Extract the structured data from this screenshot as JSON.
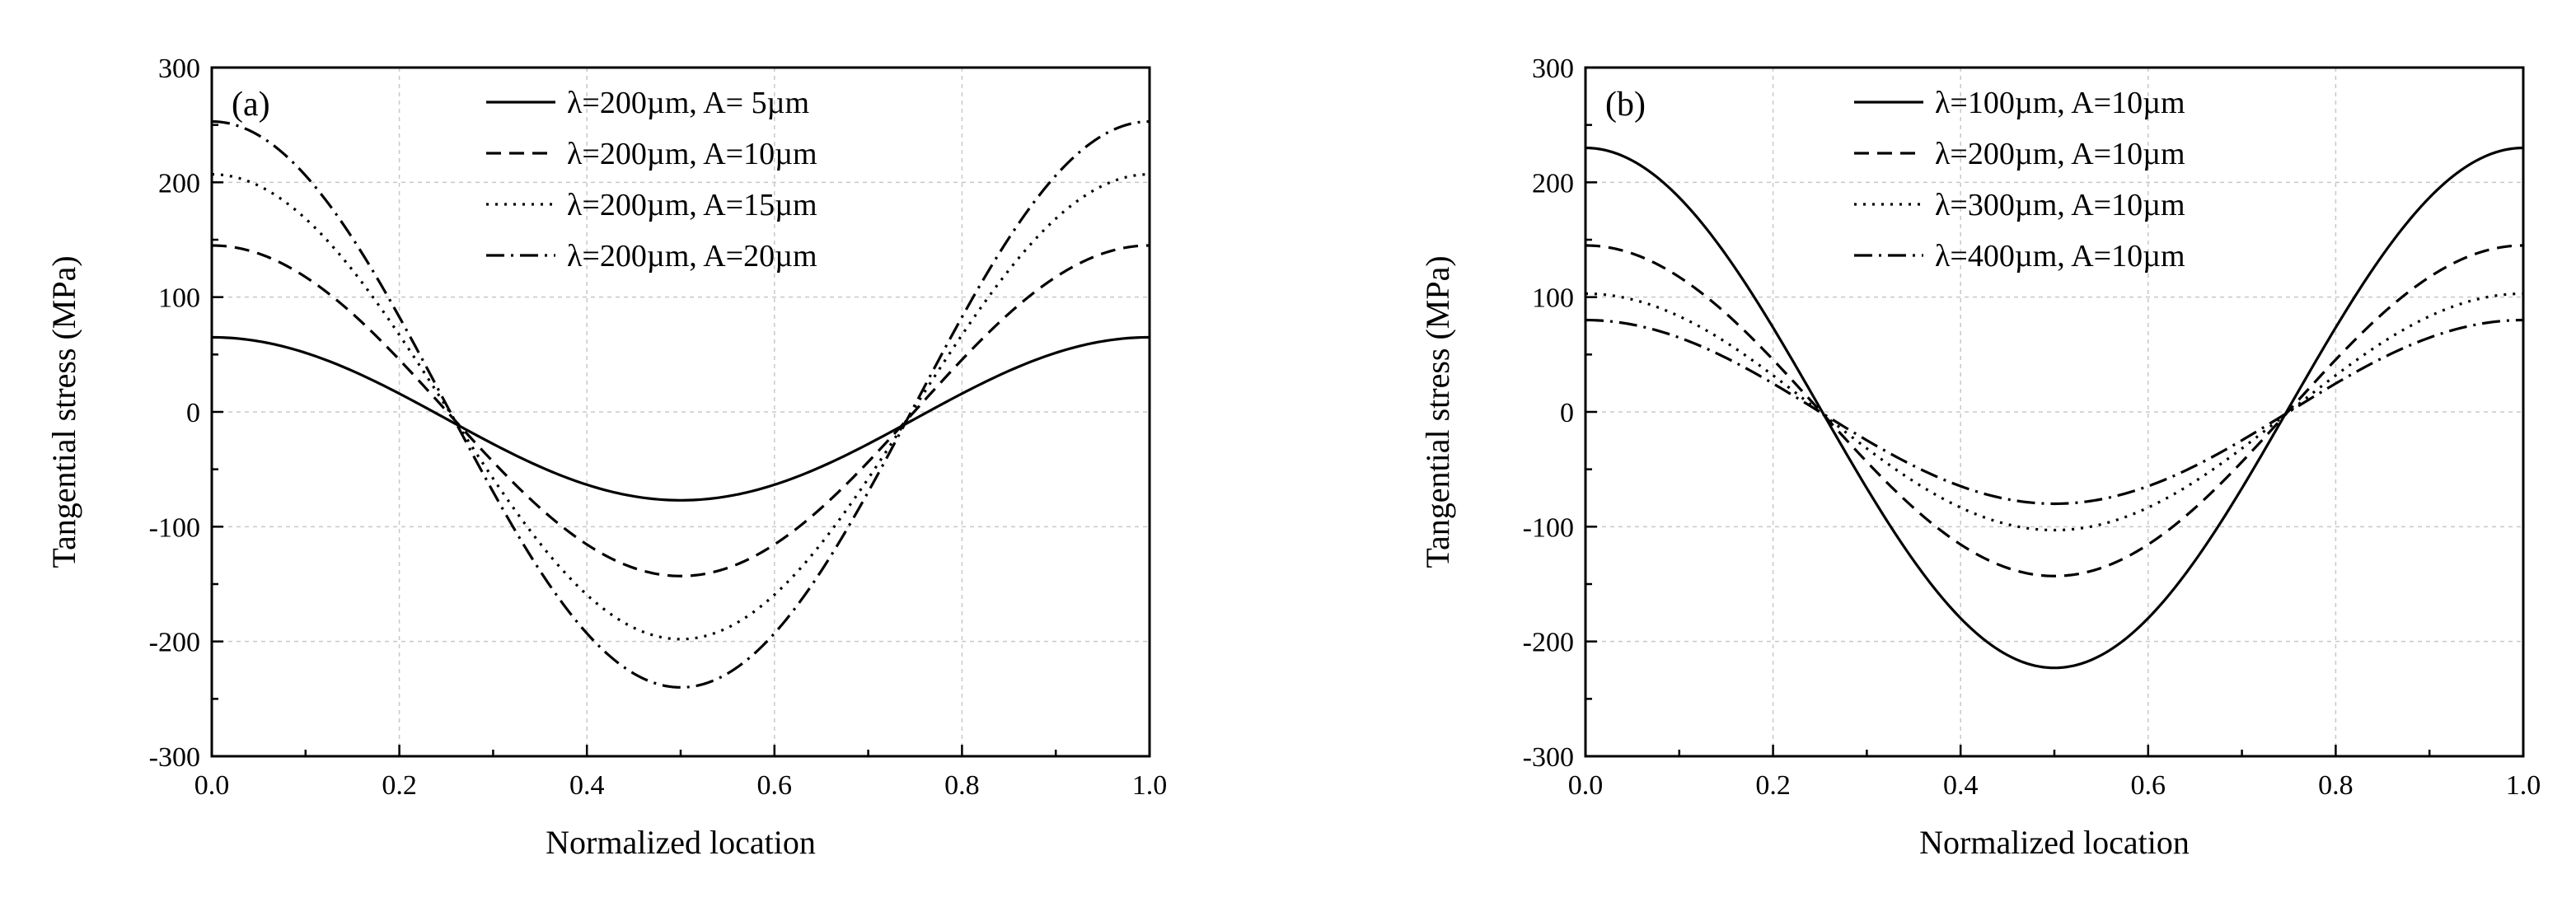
{
  "chart_data": [
    {
      "type": "line",
      "panel_label": "(a)",
      "xlabel": "Normalized location",
      "ylabel": "Tangential stress (MPa)",
      "xlim": [
        0.0,
        1.0
      ],
      "ylim": [
        -300,
        300
      ],
      "xticks": [
        "0.0",
        "0.2",
        "0.4",
        "0.6",
        "0.8",
        "1.0"
      ],
      "yticks": [
        "-300",
        "-200",
        "-100",
        "0",
        "100",
        "200",
        "300"
      ],
      "grid": true,
      "legend_position": "top-center",
      "series": [
        {
          "name": "λ=200µm, A= 5µm",
          "dash": "solid",
          "max": 65,
          "min": -77
        },
        {
          "name": "λ=200µm, A=10µm",
          "dash": "dash",
          "max": 145,
          "min": -143
        },
        {
          "name": "λ=200µm, A=15µm",
          "dash": "dot",
          "max": 207,
          "min": -198
        },
        {
          "name": "λ=200µm, A=20µm",
          "dash": "dashdot",
          "max": 253,
          "min": -240
        }
      ]
    },
    {
      "type": "line",
      "panel_label": "(b)",
      "xlabel": "Normalized location",
      "ylabel": "Tangential stress (MPa)",
      "xlim": [
        0.0,
        1.0
      ],
      "ylim": [
        -300,
        300
      ],
      "xticks": [
        "0.0",
        "0.2",
        "0.4",
        "0.6",
        "0.8",
        "1.0"
      ],
      "yticks": [
        "-300",
        "-200",
        "-100",
        "0",
        "100",
        "200",
        "300"
      ],
      "grid": true,
      "legend_position": "top-center",
      "series": [
        {
          "name": "λ=100µm, A=10µm",
          "dash": "solid",
          "max": 230,
          "min": -223
        },
        {
          "name": "λ=200µm, A=10µm",
          "dash": "dash",
          "max": 145,
          "min": -143
        },
        {
          "name": "λ=300µm, A=10µm",
          "dash": "dot",
          "max": 103,
          "min": -103
        },
        {
          "name": "λ=400µm, A=10µm",
          "dash": "dashdot",
          "max": 80,
          "min": -80
        }
      ]
    }
  ]
}
